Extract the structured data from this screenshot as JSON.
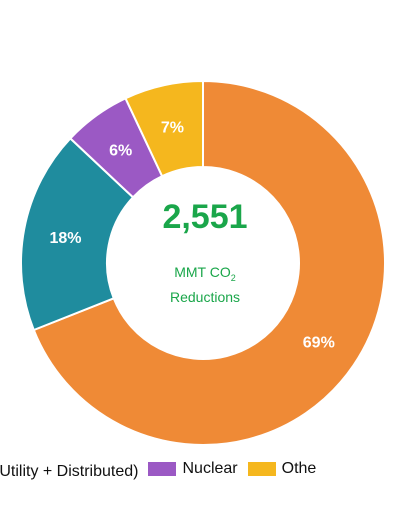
{
  "chart_data": {
    "type": "pie",
    "style": "donut",
    "center": {
      "value": "2,551",
      "line1": "MMT CO",
      "line1_subscript": "2",
      "line2": "Reductions"
    },
    "slices": [
      {
        "name": "Solar (Utility + Distributed)",
        "value": 69,
        "label": "69%",
        "color": "#ef8a36"
      },
      {
        "name": "",
        "value": 18,
        "label": "18%",
        "color": "#1f8c9e"
      },
      {
        "name": "Nuclear",
        "value": 6,
        "label": "6%",
        "color": "#9b59c4"
      },
      {
        "name": "Other",
        "value": 7,
        "label": "7%",
        "color": "#f5b71e"
      }
    ],
    "legend": [
      {
        "text": "(Utility + Distributed)",
        "color": "#ef8a36"
      },
      {
        "text": "Nuclear",
        "color": "#9b59c4"
      },
      {
        "text": "Othe",
        "color": "#f5b71e"
      }
    ],
    "legend_placement": "bottom"
  }
}
